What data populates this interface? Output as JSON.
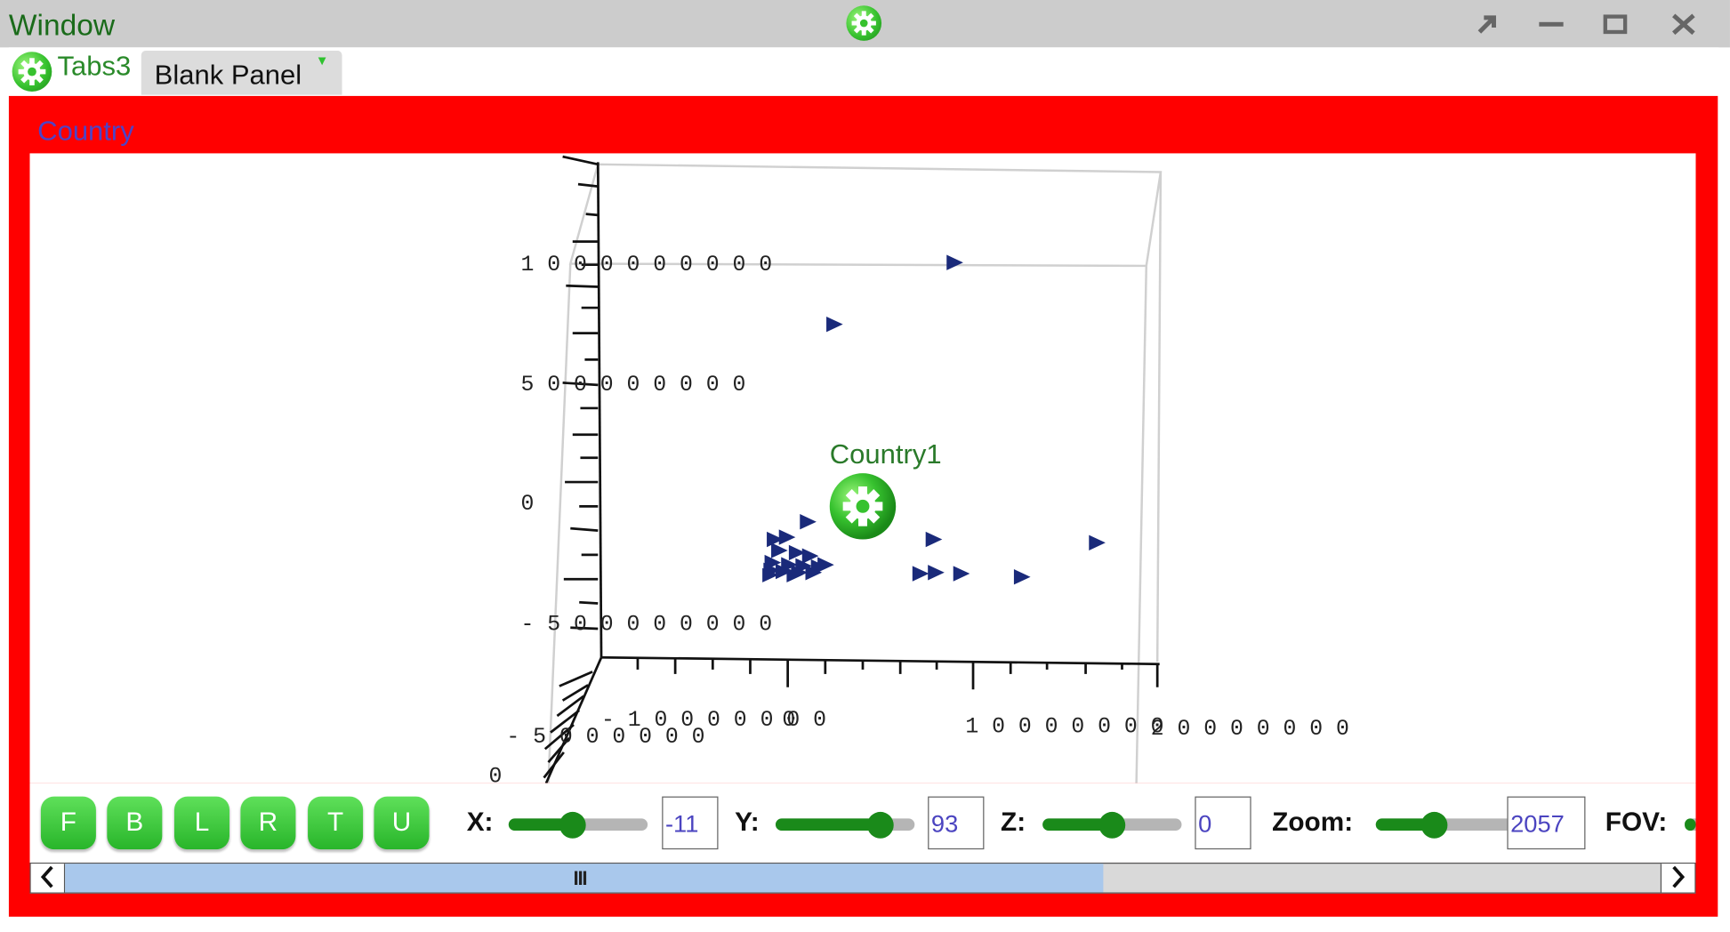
{
  "window": {
    "title": "Window",
    "controls": [
      "pop-out-icon",
      "minimize-icon",
      "maximize-icon",
      "close-icon"
    ]
  },
  "tabs": [
    {
      "label": "Tabs3",
      "active": false
    },
    {
      "label": "Blank Panel",
      "active": true
    }
  ],
  "panel": {
    "title": "Country",
    "plot": {
      "node_label": "Country1",
      "axis_labels": {
        "y_ticks": [
          "1 0 0 0 0 0 0 0 0 0",
          "5 0 0 0 0 0 0 0 0",
          "0",
          "- 5 0 0 0 0 0 0 0 0"
        ],
        "x_ticks": [
          "- 1 0 0 0 0 0 0 0",
          "0",
          "1 0 0 0 0 0 0 0",
          "2 0 0 0 0 0 0 0"
        ],
        "z_ticks": [
          "- 5 0 0 0 0 0 0",
          "0"
        ]
      }
    }
  },
  "controls": {
    "view_buttons": [
      "F",
      "B",
      "L",
      "R",
      "T",
      "U"
    ],
    "x": {
      "label": "X:",
      "value": "-11",
      "level": 0.46
    },
    "y": {
      "label": "Y:",
      "value": "93",
      "level": 0.75
    },
    "z": {
      "label": "Z:",
      "value": "0",
      "level": 0.5
    },
    "zoom": {
      "label": "Zoom:",
      "value": "2057",
      "level": 0.42
    },
    "fov": {
      "label": "FOV:"
    }
  },
  "scrollbar": {
    "thumb_fraction": 0.65,
    "grip": "III"
  },
  "colors": {
    "accent_green": "#2fc22f",
    "panel_red": "#ff0000",
    "marker_navy": "#1a2a7a",
    "title_green": "#1a6b1a"
  }
}
